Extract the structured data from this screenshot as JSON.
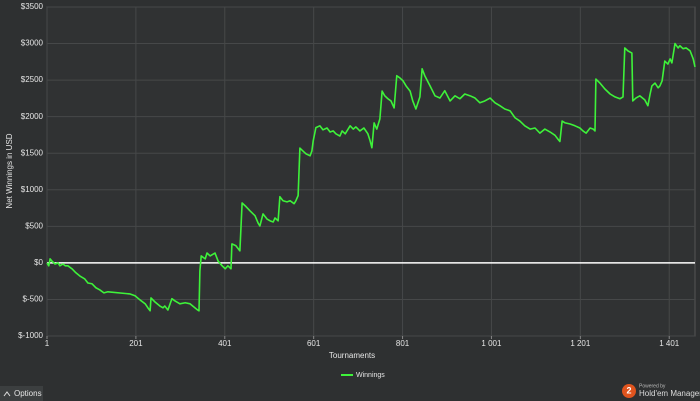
{
  "chart_data": {
    "type": "line",
    "x_label": "Tournaments",
    "y_label": "Net Winnings in USD",
    "x": [
      1,
      5,
      8,
      12,
      19,
      26,
      30,
      37,
      42,
      48,
      57,
      66,
      75,
      86,
      93,
      102,
      111,
      120,
      129,
      138,
      188,
      199,
      210,
      222,
      228,
      233,
      235,
      244,
      255,
      262,
      266,
      273,
      282,
      289,
      300,
      312,
      323,
      334,
      339,
      343,
      345,
      348,
      357,
      361,
      368,
      379,
      386,
      395,
      402,
      408,
      415,
      417,
      426,
      435,
      440,
      447,
      458,
      469,
      476,
      480,
      487,
      496,
      503,
      510,
      514,
      521,
      525,
      532,
      541,
      548,
      557,
      561,
      566,
      570,
      577,
      584,
      593,
      597,
      600,
      606,
      615,
      622,
      631,
      638,
      645,
      651,
      660,
      665,
      672,
      683,
      690,
      696,
      705,
      714,
      723,
      728,
      732,
      737,
      743,
      750,
      755,
      761,
      768,
      775,
      782,
      788,
      795,
      802,
      809,
      818,
      824,
      831,
      840,
      845,
      851,
      863,
      874,
      885,
      896,
      908,
      919,
      930,
      941,
      953,
      964,
      975,
      986,
      998,
      1009,
      1020,
      1031,
      1043,
      1054,
      1065,
      1076,
      1088,
      1099,
      1110,
      1121,
      1133,
      1144,
      1151,
      1155,
      1160,
      1167,
      1178,
      1189,
      1200,
      1207,
      1214,
      1223,
      1230,
      1234,
      1236,
      1245,
      1256,
      1268,
      1279,
      1290,
      1297,
      1301,
      1308,
      1317,
      1319,
      1326,
      1335,
      1346,
      1353,
      1358,
      1362,
      1369,
      1376,
      1380,
      1385,
      1391,
      1398,
      1403,
      1407,
      1414,
      1421,
      1425,
      1432,
      1439,
      1448,
      1455,
      1459
    ],
    "series": [
      {
        "name": "Winnings",
        "color": "#3ef23a",
        "values": [
          0,
          -40,
          55,
          25,
          -15,
          0,
          -40,
          -15,
          -40,
          -40,
          -80,
          -135,
          -180,
          -220,
          -275,
          -285,
          -340,
          -370,
          -410,
          -395,
          -425,
          -450,
          -505,
          -560,
          -615,
          -655,
          -480,
          -535,
          -590,
          -615,
          -590,
          -645,
          -490,
          -520,
          -560,
          -545,
          -560,
          -615,
          -640,
          -655,
          -110,
          95,
          55,
          135,
          95,
          135,
          25,
          -40,
          -80,
          -40,
          -80,
          260,
          235,
          165,
          820,
          780,
          710,
          645,
          545,
          505,
          670,
          600,
          575,
          560,
          615,
          575,
          905,
          850,
          835,
          850,
          810,
          850,
          920,
          1570,
          1530,
          1490,
          1465,
          1530,
          1670,
          1850,
          1875,
          1820,
          1845,
          1790,
          1805,
          1765,
          1735,
          1805,
          1765,
          1875,
          1830,
          1860,
          1805,
          1845,
          1765,
          1670,
          1575,
          1915,
          1830,
          1970,
          2350,
          2285,
          2245,
          2215,
          2120,
          2560,
          2530,
          2490,
          2420,
          2350,
          2215,
          2105,
          2270,
          2655,
          2560,
          2420,
          2285,
          2255,
          2355,
          2215,
          2285,
          2245,
          2310,
          2285,
          2255,
          2190,
          2215,
          2255,
          2190,
          2150,
          2105,
          2080,
          1985,
          1940,
          1875,
          1830,
          1845,
          1775,
          1830,
          1790,
          1745,
          1690,
          1660,
          1940,
          1915,
          1900,
          1875,
          1845,
          1805,
          1775,
          1845,
          1830,
          1805,
          2515,
          2460,
          2380,
          2310,
          2270,
          2245,
          2270,
          2940,
          2900,
          2870,
          2215,
          2255,
          2285,
          2230,
          2150,
          2310,
          2420,
          2460,
          2395,
          2420,
          2490,
          2760,
          2720,
          2790,
          2735,
          3000,
          2940,
          2970,
          2930,
          2940,
          2900,
          2790,
          2680
        ]
      }
    ],
    "xlim": [
      1,
      1459
    ],
    "xticks": [
      1,
      201,
      401,
      601,
      801,
      {
        "value": 1001,
        "label": "1 001"
      },
      {
        "value": 1201,
        "label": "1 201"
      },
      {
        "value": 1401,
        "label": "1 401"
      }
    ],
    "ylim": [
      -1000,
      3500
    ],
    "yticks": [
      {
        "value": -1000,
        "label": "$-1000"
      },
      {
        "value": -500,
        "label": "$-500"
      },
      {
        "value": 0,
        "label": "$0"
      },
      {
        "value": 500,
        "label": "$500"
      },
      {
        "value": 1000,
        "label": "$1000"
      },
      {
        "value": 1500,
        "label": "$1500"
      },
      {
        "value": 2000,
        "label": "$2000"
      },
      {
        "value": 2500,
        "label": "$2500"
      },
      {
        "value": 3000,
        "label": "$3000"
      },
      {
        "value": 3500,
        "label": "$3500"
      }
    ],
    "grid": true,
    "zero_line": true,
    "legend": "bottom"
  },
  "ui": {
    "options_button": "Options",
    "logo_mark": "2",
    "powered_by": "Powered by",
    "brand": "Hold'em Manager"
  }
}
